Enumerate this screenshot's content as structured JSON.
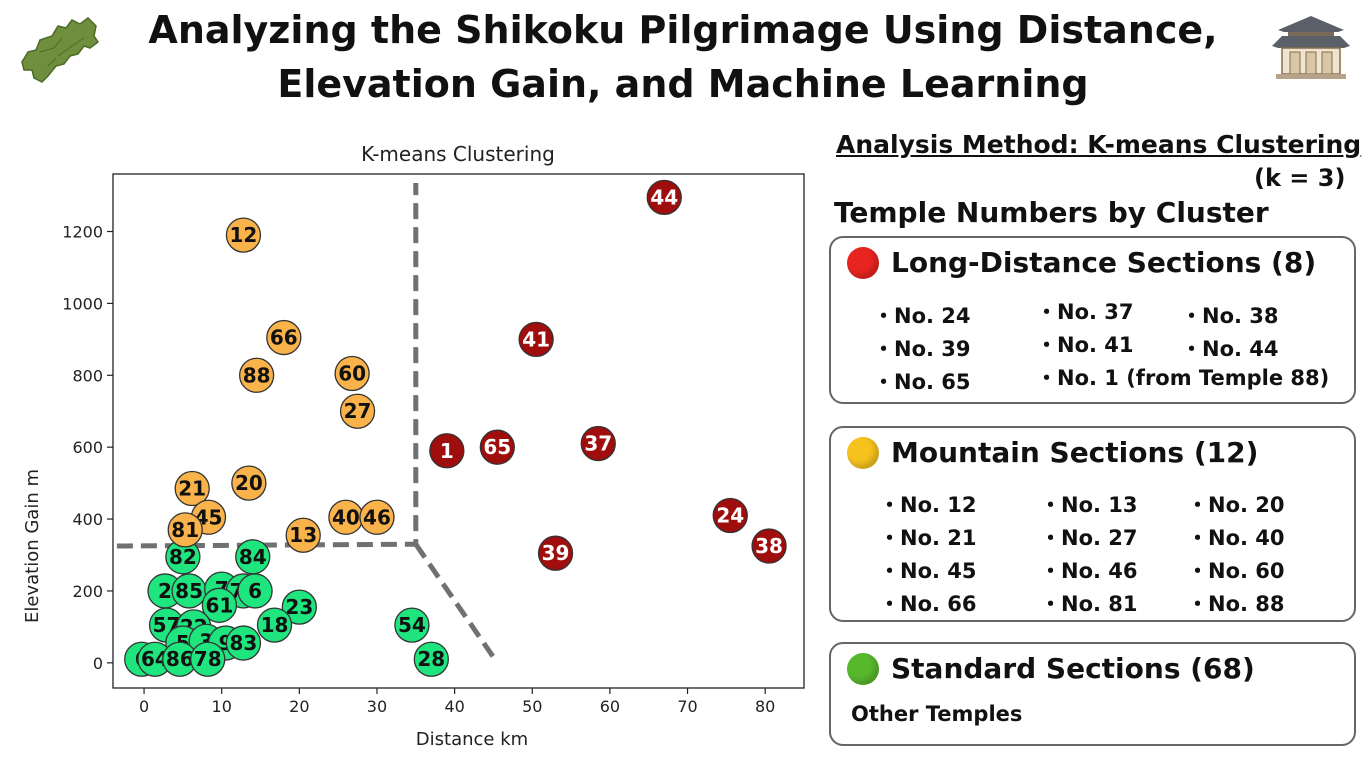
{
  "title": {
    "line1": "Analyzing the Shikoku Pilgrimage Using Distance,",
    "line2": "Elevation Gain, and Machine Learning"
  },
  "icons": {
    "left": "shikoku-map-icon",
    "right": "temple-building-icon"
  },
  "colors": {
    "long": "#a00d0d",
    "mountain": "#f9b34a",
    "standard": "#1fe57f",
    "boundary": "#707070"
  },
  "panel": {
    "method_title": "Analysis Method: K-means Clustering",
    "method_k": "(k = 3)",
    "clusters_heading": "Temple Numbers by Cluster",
    "long": {
      "title": "Long-Distance Sections (8)",
      "items": [
        "No. 24",
        "No. 39",
        "No. 65",
        "No. 37",
        "No. 41",
        "No. 1 (from Temple 88)",
        "No.  38",
        "No.  44"
      ]
    },
    "mountain": {
      "title": "Mountain Sections (12)",
      "items": [
        "No. 12",
        "No. 21",
        "No. 45",
        "No. 66",
        "No. 13",
        "No. 27",
        "No. 46",
        "No. 81",
        "No. 20",
        "No. 40",
        "No. 60",
        "No. 88"
      ]
    },
    "standard": {
      "title": "Standard Sections (68)",
      "text": "Other Temples"
    }
  },
  "chart_data": {
    "type": "scatter",
    "title": "K-means Clustering",
    "xlabel": "Distance km",
    "ylabel": "Elevation Gain m",
    "xlim": [
      -4,
      85
    ],
    "ylim": [
      -70,
      1360
    ],
    "xticks": [
      0,
      10,
      20,
      30,
      40,
      50,
      60,
      70,
      80
    ],
    "yticks": [
      0,
      200,
      400,
      600,
      800,
      1000,
      1200
    ],
    "grid": false,
    "series": [
      {
        "cluster": "long",
        "points": [
          {
            "label": "44",
            "x": 67,
            "y": 1295
          },
          {
            "label": "41",
            "x": 50.5,
            "y": 900
          },
          {
            "label": "1",
            "x": 39,
            "y": 590
          },
          {
            "label": "65",
            "x": 45.5,
            "y": 600
          },
          {
            "label": "37",
            "x": 58.5,
            "y": 610
          },
          {
            "label": "39",
            "x": 53,
            "y": 305
          },
          {
            "label": "24",
            "x": 75.5,
            "y": 410
          },
          {
            "label": "38",
            "x": 80.5,
            "y": 325
          }
        ]
      },
      {
        "cluster": "mountain",
        "points": [
          {
            "label": "12",
            "x": 12.8,
            "y": 1190
          },
          {
            "label": "66",
            "x": 18,
            "y": 905
          },
          {
            "label": "88",
            "x": 14.5,
            "y": 800
          },
          {
            "label": "60",
            "x": 26.8,
            "y": 805
          },
          {
            "label": "27",
            "x": 27.5,
            "y": 700
          },
          {
            "label": "20",
            "x": 13.5,
            "y": 500
          },
          {
            "label": "21",
            "x": 6.2,
            "y": 485
          },
          {
            "label": "45",
            "x": 8.3,
            "y": 405
          },
          {
            "label": "81",
            "x": 5.3,
            "y": 370
          },
          {
            "label": "13",
            "x": 20.5,
            "y": 355
          },
          {
            "label": "40",
            "x": 26,
            "y": 405
          },
          {
            "label": "46",
            "x": 30,
            "y": 405
          }
        ]
      },
      {
        "cluster": "standard",
        "points": [
          {
            "label": "82",
            "x": 5,
            "y": 295
          },
          {
            "label": "84",
            "x": 14,
            "y": 295
          },
          {
            "label": "2",
            "x": 2.7,
            "y": 200
          },
          {
            "label": "85",
            "x": 5.8,
            "y": 200
          },
          {
            "label": "7",
            "x": 10,
            "y": 205
          },
          {
            "label": "71",
            "x": 12.8,
            "y": 200
          },
          {
            "label": "6",
            "x": 14.3,
            "y": 200
          },
          {
            "label": "61",
            "x": 9.7,
            "y": 160
          },
          {
            "label": "23",
            "x": 20,
            "y": 155
          },
          {
            "label": "57",
            "x": 2.9,
            "y": 105
          },
          {
            "label": "22",
            "x": 6.4,
            "y": 100
          },
          {
            "label": "18",
            "x": 16.8,
            "y": 105
          },
          {
            "label": "54",
            "x": 34.5,
            "y": 105
          },
          {
            "label": "5",
            "x": 5,
            "y": 55
          },
          {
            "label": "3",
            "x": 8,
            "y": 60
          },
          {
            "label": "9",
            "x": 10.5,
            "y": 55
          },
          {
            "label": "83",
            "x": 12.8,
            "y": 55
          },
          {
            "label": "6",
            "x": -0.3,
            "y": 10
          },
          {
            "label": "64",
            "x": 1.4,
            "y": 10
          },
          {
            "label": "86",
            "x": 4.6,
            "y": 10
          },
          {
            "label": "78",
            "x": 8.2,
            "y": 10
          },
          {
            "label": "28",
            "x": 37,
            "y": 10
          }
        ]
      }
    ],
    "boundaries": [
      {
        "points": [
          [
            -3.5,
            325
          ],
          [
            35,
            330
          ],
          [
            35,
            1335
          ]
        ]
      },
      {
        "points": [
          [
            35,
            330
          ],
          [
            45.5,
            0
          ]
        ]
      }
    ]
  }
}
